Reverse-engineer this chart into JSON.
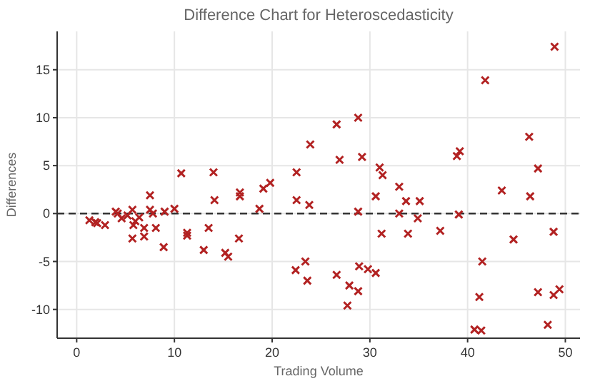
{
  "chart_data": {
    "type": "scatter",
    "title": "Difference Chart for Heteroscedasticity",
    "xlabel": "Trading Volume",
    "ylabel": "Differences",
    "x": [
      1.3,
      1.9,
      2.1,
      2.9,
      4.0,
      4.2,
      4.6,
      5.2,
      5.7,
      5.8,
      5.7,
      6.0,
      6.4,
      6.9,
      6.9,
      7.5,
      7.5,
      7.8,
      8.1,
      8.9,
      9.0,
      10.0,
      10.7,
      11.3,
      11.3,
      13.0,
      13.5,
      14.0,
      14.1,
      15.2,
      15.5,
      16.6,
      16.7,
      16.7,
      18.7,
      19.1,
      19.8,
      22.5,
      22.5,
      23.9,
      23.8,
      22.4,
      23.4,
      23.6,
      48.9,
      41.8,
      26.6,
      28.8,
      26.9,
      29.2,
      46.3,
      39.2,
      38.9,
      47.2,
      31.0,
      31.3,
      33.0,
      43.5,
      46.4,
      30.6,
      33.7,
      35.1,
      28.8,
      33.0,
      34.9,
      39.1,
      31.2,
      33.9,
      37.2,
      44.7,
      48.8,
      41.5,
      26.6,
      28.9,
      29.8,
      30.6,
      27.9,
      28.8,
      27.7,
      41.2,
      47.2,
      48.8,
      49.4,
      48.2,
      40.7,
      41.4
    ],
    "values": [
      -0.7,
      -0.9,
      -1.0,
      -1.2,
      0.2,
      0,
      -0.5,
      -0.2,
      0.4,
      -1.2,
      -2.6,
      -0.8,
      -0.4,
      -1.5,
      -2.4,
      1.9,
      0.4,
      0.0,
      -1.5,
      -3.5,
      0.2,
      0.5,
      4.2,
      -2.0,
      -2.3,
      -3.8,
      -1.5,
      4.3,
      1.4,
      -4.1,
      -4.5,
      -2.6,
      2.2,
      1.8,
      0.5,
      2.6,
      3.2,
      4.3,
      1.4,
      7.2,
      0.9,
      -5.9,
      -5.0,
      -7.0,
      17.4,
      13.9,
      9.3,
      10.0,
      5.6,
      5.9,
      8.0,
      6.5,
      6.0,
      4.7,
      4.8,
      4.0,
      2.8,
      2.4,
      1.8,
      1.8,
      1.3,
      1.3,
      0.2,
      0.0,
      -0.5,
      -0.1,
      -2.1,
      -2.1,
      -1.8,
      -2.7,
      -1.9,
      -5.0,
      -6.4,
      -5.5,
      -5.8,
      -6.2,
      -7.5,
      -8.1,
      -9.6,
      -8.7,
      -8.2,
      -8.5,
      -7.9,
      -11.6,
      -12.1,
      -12.2
    ],
    "color": "#b22222",
    "marker": "cross",
    "xlim": [
      -2,
      51.5
    ],
    "ylim": [
      -13,
      19
    ],
    "xticks": [
      0,
      10,
      20,
      30,
      40,
      50
    ],
    "yticks": [
      -10,
      -5,
      0,
      5,
      10,
      15
    ],
    "grid": true,
    "ref_lines": [
      {
        "axis": "y",
        "value": 0,
        "color": "#333333",
        "line_style": "dashed"
      }
    ]
  }
}
